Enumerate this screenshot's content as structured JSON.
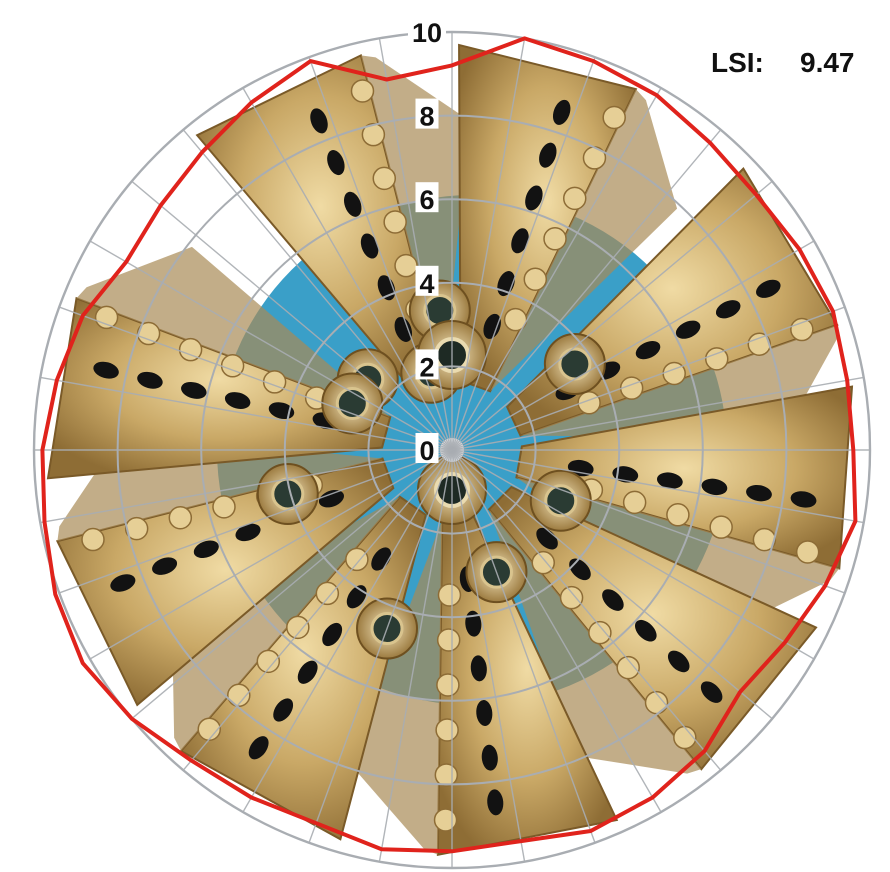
{
  "chart_data": {
    "type": "radar",
    "r_range": [
      0,
      10
    ],
    "radial_ticks": [
      "0",
      "2",
      "4",
      "6",
      "8",
      "10"
    ],
    "radial_tick_values": [
      0,
      2,
      4,
      6,
      8,
      10
    ],
    "angular_spokes": 36,
    "grid": true,
    "legend": "none",
    "annotation": {
      "label": "LSI:",
      "value": "9.47"
    },
    "series": [
      {
        "color": "#e0231c",
        "angle_deg": [
          0,
          10,
          20,
          30,
          40,
          50,
          60,
          70,
          80,
          90,
          100,
          110,
          120,
          130,
          140,
          150,
          160,
          170,
          180,
          190,
          200,
          210,
          220,
          230,
          240,
          250,
          260,
          270,
          280,
          290,
          300,
          310,
          320,
          330,
          340,
          350
        ],
        "values": [
          9.2,
          10.0,
          9.9,
          9.8,
          9.6,
          9.5,
          9.6,
          9.7,
          9.6,
          9.6,
          9.8,
          9.5,
          9.2,
          9.0,
          9.4,
          9.6,
          9.7,
          9.5,
          9.6,
          9.7,
          9.5,
          9.6,
          9.7,
          10.0,
          10.2,
          10.1,
          9.9,
          9.8,
          9.6,
          9.4,
          9.0,
          9.1,
          9.3,
          9.6,
          9.9,
          9.0
        ]
      }
    ]
  },
  "colors": {
    "grid": "#a9adb2",
    "bit_body": "#b99a5c",
    "bit_highlight": "#e6cf96",
    "blue_body": "#3a9fc8",
    "cutter": "#121212",
    "outline": "#e0231c"
  },
  "image": {
    "subject": "PDC drill bit (top view)"
  }
}
